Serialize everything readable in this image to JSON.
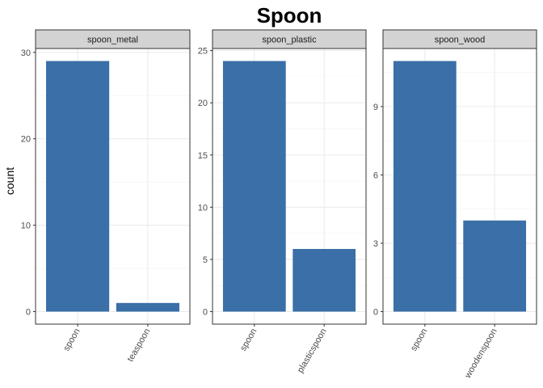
{
  "chart_data": {
    "type": "bar",
    "title": "Spoon",
    "xlabel": "",
    "ylabel": "count",
    "bar_color": "#3a6fa7",
    "strip_color": "#d3d3d3",
    "grid": true,
    "facets": [
      {
        "name": "spoon_metal",
        "categories": [
          "spoon",
          "teaspoon"
        ],
        "values": [
          29,
          1
        ],
        "ylim": [
          -1.45,
          30.45
        ],
        "yticks": [
          0,
          10,
          20,
          30
        ]
      },
      {
        "name": "spoon_plastic",
        "categories": [
          "spoon",
          "plasticspoon"
        ],
        "values": [
          24,
          6
        ],
        "ylim": [
          -1.2,
          25.2
        ],
        "yticks": [
          0,
          5,
          10,
          15,
          20,
          25
        ]
      },
      {
        "name": "spoon_wood",
        "categories": [
          "spoon",
          "woodenspoon"
        ],
        "values": [
          11,
          4
        ],
        "ylim": [
          -0.55,
          11.55
        ],
        "yticks": [
          0,
          3,
          6,
          9
        ]
      }
    ]
  }
}
